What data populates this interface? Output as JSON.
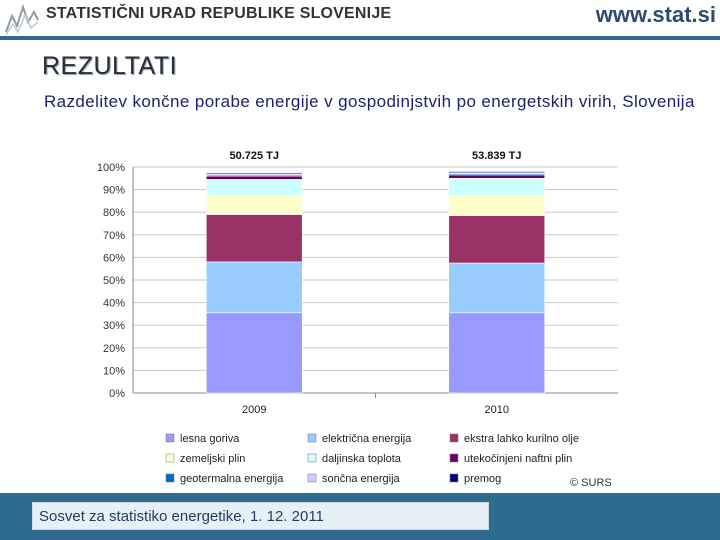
{
  "header": {
    "org_name": "STATISTIČNI URAD REPUBLIKE SLOVENIJE",
    "site_url": "www.stat.si"
  },
  "slide": {
    "title": "REZULTATI",
    "subtitle": "Razdelitev končne porabe energije v gospodinjstvih po energetskih virih, Slovenija"
  },
  "chart_data": {
    "type": "bar",
    "stacked": true,
    "percent": true,
    "categories": [
      "2009",
      "2010"
    ],
    "totals": [
      "50.725 TJ",
      "53.839 TJ"
    ],
    "y_ticks": [
      "0%",
      "10%",
      "20%",
      "30%",
      "40%",
      "50%",
      "60%",
      "70%",
      "80%",
      "90%",
      "100%"
    ],
    "ylim": [
      0,
      100
    ],
    "series": [
      {
        "name": "lesna goriva",
        "color": "#9999ff",
        "values": [
          35.5,
          35.5
        ]
      },
      {
        "name": "električna energija",
        "color": "#99ccff",
        "values": [
          22.5,
          22.0
        ]
      },
      {
        "name": "ekstra lahko kurilno olje",
        "color": "#993366",
        "values": [
          21.0,
          21.0
        ]
      },
      {
        "name": "zemeljski plin",
        "color": "#ffffcc",
        "values": [
          8.5,
          9.0
        ]
      },
      {
        "name": "daljinska toplota",
        "color": "#ccffff",
        "values": [
          7.0,
          7.5
        ]
      },
      {
        "name": "utekočinjeni naftni plin",
        "color": "#660066",
        "values": [
          1.5,
          1.5
        ]
      },
      {
        "name": "geotermalna energija",
        "color": "#0066cc",
        "values": [
          0.5,
          0.5
        ]
      },
      {
        "name": "sončna energija",
        "color": "#ccccff",
        "values": [
          0.5,
          0.5
        ]
      },
      {
        "name": "premog",
        "color": "#000080",
        "values": [
          0.5,
          0.5
        ]
      }
    ],
    "legend_position": "bottom"
  },
  "credit": "© SURS",
  "footer": {
    "text": "Sosvet za statistiko energetike, 1. 12. 2011"
  }
}
